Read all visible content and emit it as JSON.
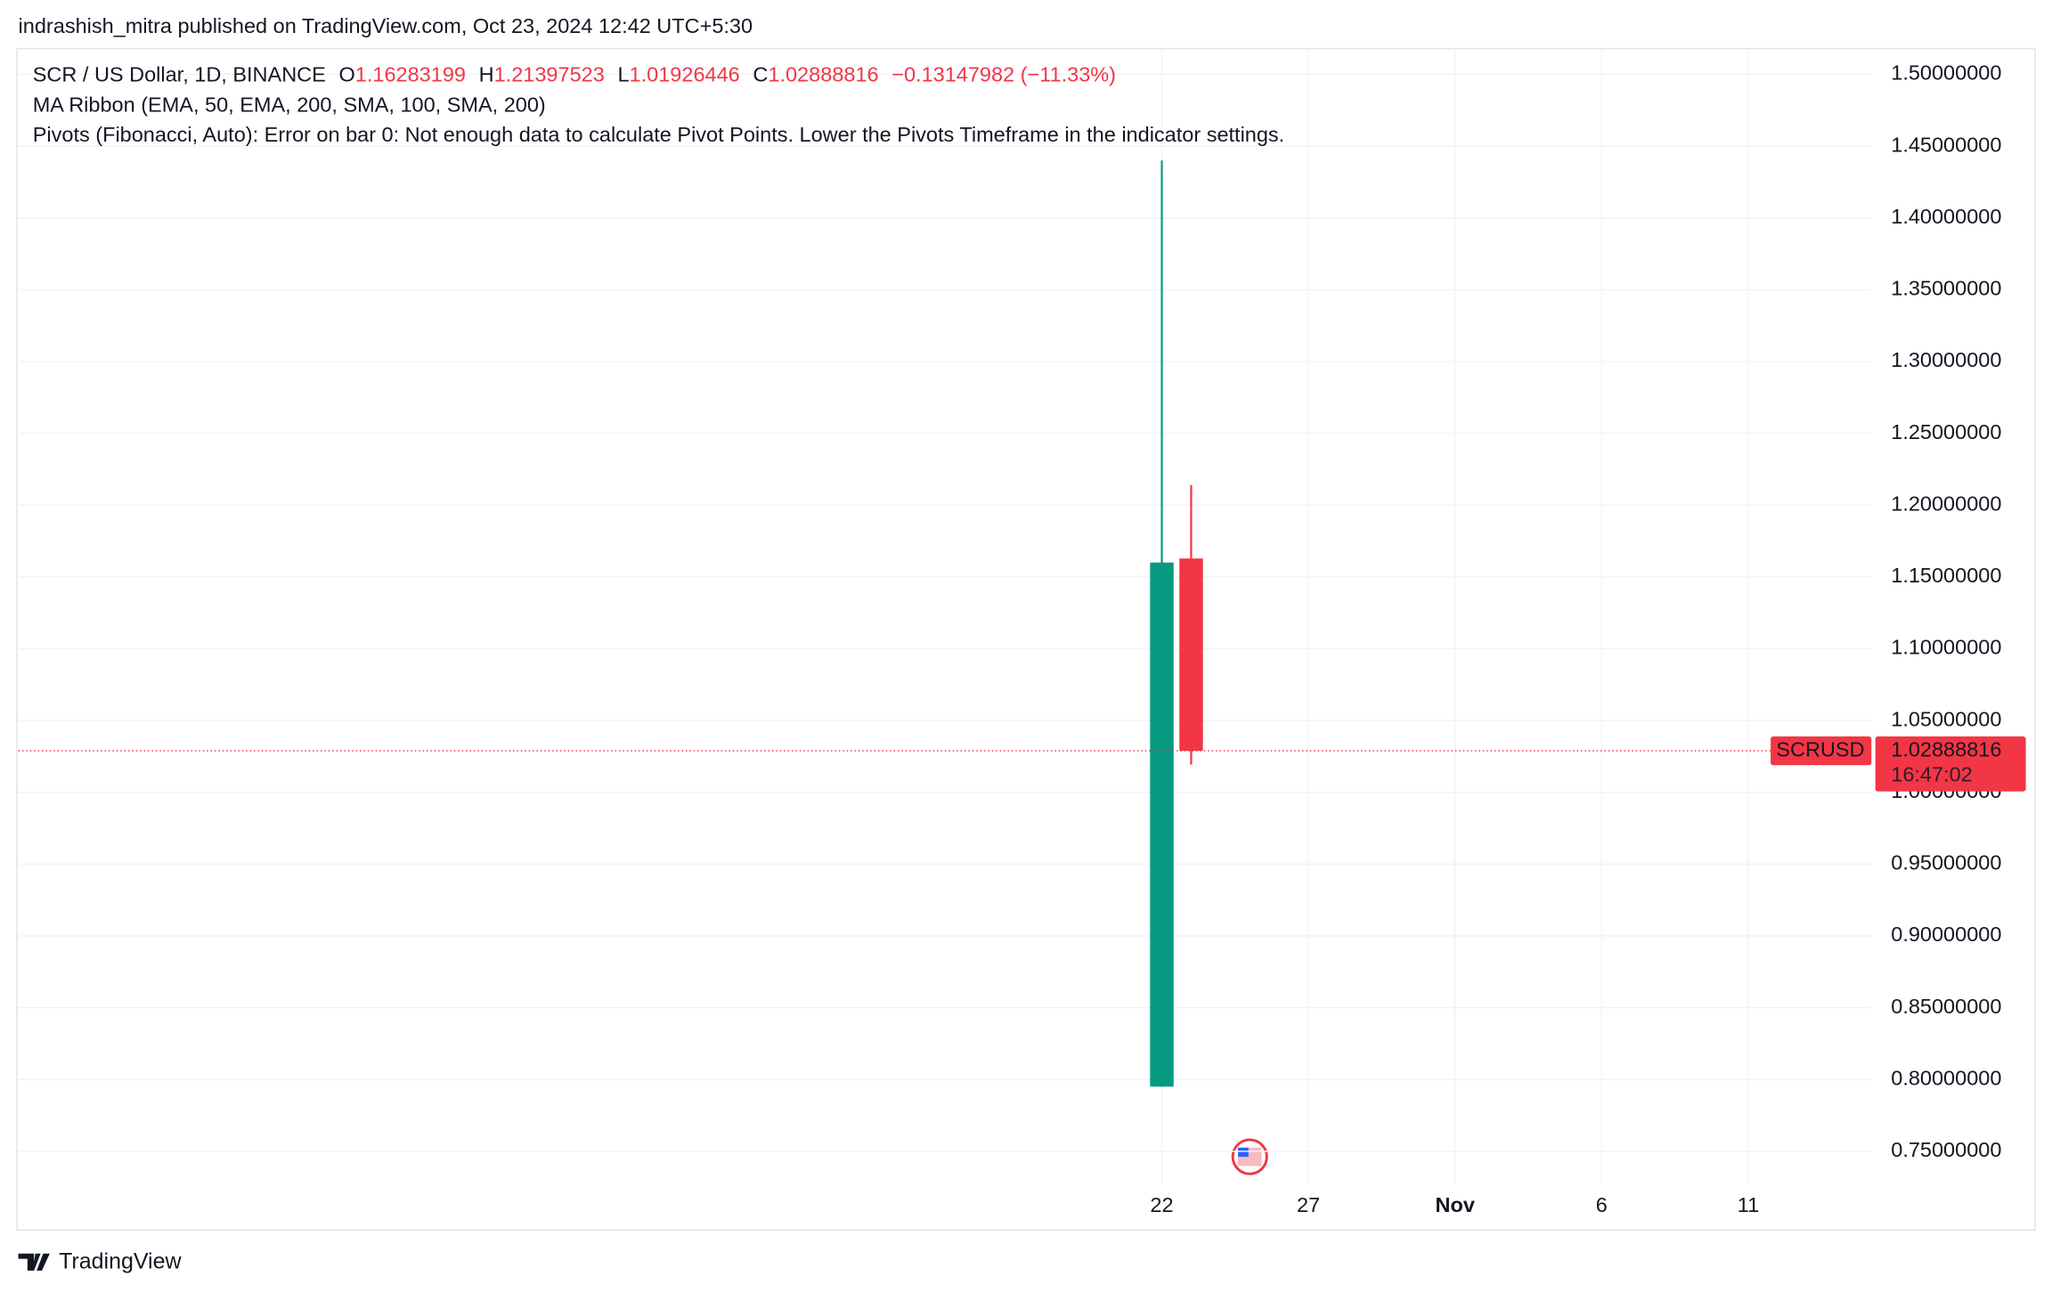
{
  "header": "indrashish_mitra published on TradingView.com, Oct 23, 2024 12:42 UTC+5:30",
  "footer": "TradingView",
  "chart_data": {
    "type": "candlestick",
    "legend_title": "SCR / US Dollar, 1D, BINANCE",
    "ohlc_labels": [
      "O",
      "H",
      "L",
      "C"
    ],
    "change": "−0.13147982 (−11.33%)",
    "indicators": [
      "MA Ribbon (EMA, 50, EMA, 200, SMA, 100, SMA, 200)",
      "Pivots (Fibonacci, Auto): Error on bar 0: Not enough data to calculate Pivot Points. Lower the Pivots Timeframe in the indicator settings."
    ],
    "symbol": "SCRUSD",
    "countdown": "16:47:02",
    "x": [
      22,
      23
    ],
    "open": [
      0.795,
      1.16283199
    ],
    "high": [
      1.44,
      1.21397523
    ],
    "low": [
      0.795,
      1.01926446
    ],
    "close": [
      1.16,
      1.02888816
    ],
    "up_color": "#089981",
    "down_color": "#f23645",
    "xlim": [
      -17,
      46.2
    ],
    "xticks": [
      22,
      27,
      {
        "value": 32,
        "label": "Nov"
      },
      {
        "value": 37,
        "label": "6"
      },
      {
        "value": 42,
        "label": "11"
      }
    ],
    "ylim": [
      0.727,
      1.518
    ],
    "yticks": [
      {
        "value": 0.75,
        "label": "0.75000000"
      },
      {
        "value": 0.8,
        "label": "0.80000000"
      },
      {
        "value": 0.85,
        "label": "0.85000000"
      },
      {
        "value": 0.9,
        "label": "0.90000000"
      },
      {
        "value": 0.95,
        "label": "0.95000000"
      },
      {
        "value": 1.0,
        "label": "1.00000000"
      },
      {
        "value": 1.05,
        "label": "1.05000000"
      },
      {
        "value": 1.1,
        "label": "1.10000000"
      },
      {
        "value": 1.15,
        "label": "1.15000000"
      },
      {
        "value": 1.2,
        "label": "1.20000000"
      },
      {
        "value": 1.25,
        "label": "1.25000000"
      },
      {
        "value": 1.3,
        "label": "1.30000000"
      },
      {
        "value": 1.35,
        "label": "1.35000000"
      },
      {
        "value": 1.4,
        "label": "1.40000000"
      },
      {
        "value": 1.45,
        "label": "1.45000000"
      },
      {
        "value": 1.5,
        "label": "1.50000000"
      }
    ],
    "grid": true
  }
}
